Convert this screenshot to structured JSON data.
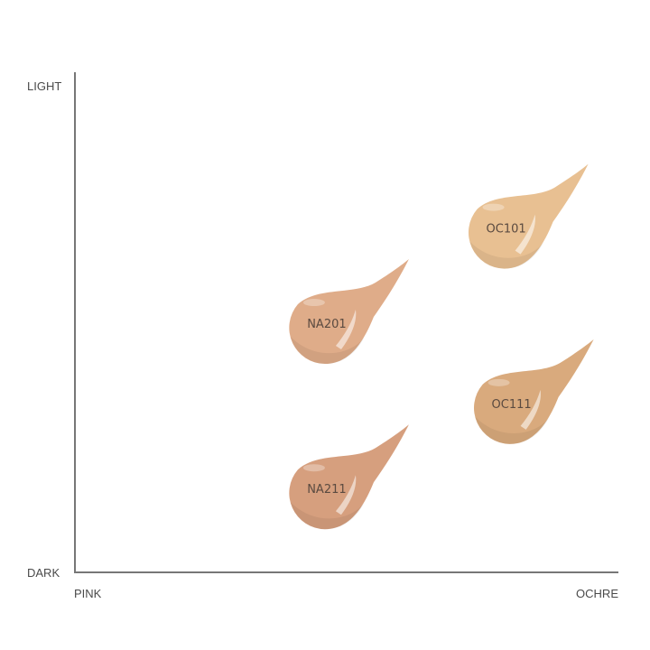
{
  "chart_data": {
    "type": "scatter",
    "title": "",
    "y_axis": {
      "low_label": "DARK",
      "high_label": "LIGHT"
    },
    "x_axis": {
      "low_label": "PINK",
      "high_label": "OCHRE"
    },
    "xlim": [
      0,
      100
    ],
    "ylim": [
      0,
      100
    ],
    "grid": false,
    "marker": "foundation-drop",
    "points": [
      {
        "label": "OC101",
        "x": 79,
        "y": 68,
        "color": "#e8c092"
      },
      {
        "label": "NA201",
        "x": 46,
        "y": 49,
        "color": "#dfac89"
      },
      {
        "label": "OC111",
        "x": 80,
        "y": 33,
        "color": "#d9aa7d"
      },
      {
        "label": "NA211",
        "x": 46,
        "y": 16,
        "color": "#d69f7e"
      }
    ],
    "axis_color": "#777777"
  }
}
